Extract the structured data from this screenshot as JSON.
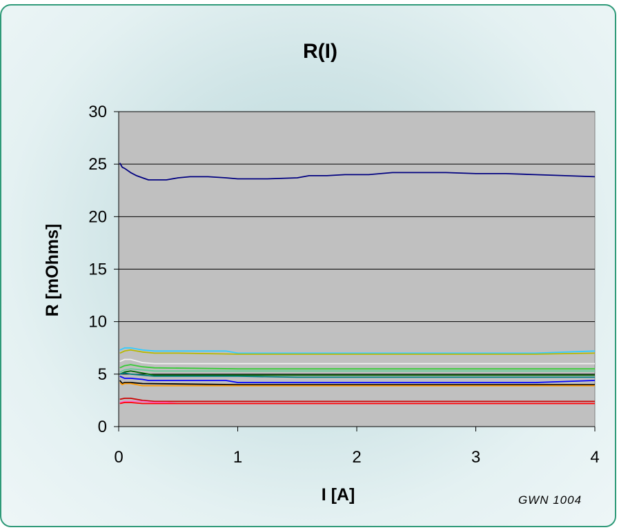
{
  "chart_data": {
    "type": "line",
    "title": "R(I)",
    "xlabel": "I [A]",
    "ylabel": "R [mOhms]",
    "annotation": "GWN 1004",
    "xlim": [
      0,
      4
    ],
    "ylim": [
      0,
      30
    ],
    "xticks": [
      "0",
      "1",
      "2",
      "3",
      "4"
    ],
    "yticks": [
      "0",
      "5",
      "10",
      "15",
      "20",
      "25",
      "30"
    ],
    "grid": "horizontal",
    "legend": "none",
    "plot_background": "#c0c0c0",
    "series": [
      {
        "color": "#000080",
        "x": [
          0.01,
          0.03,
          0.05,
          0.1,
          0.15,
          0.2,
          0.25,
          0.3,
          0.4,
          0.5,
          0.6,
          0.75,
          0.9,
          1.0,
          1.25,
          1.5,
          1.6,
          1.75,
          1.9,
          2.1,
          2.3,
          2.5,
          2.75,
          3.0,
          3.25,
          3.5,
          3.75,
          4.0
        ],
        "y": [
          25.1,
          24.7,
          24.6,
          24.2,
          23.9,
          23.7,
          23.5,
          23.5,
          23.5,
          23.7,
          23.8,
          23.8,
          23.7,
          23.6,
          23.6,
          23.7,
          23.9,
          23.9,
          24.0,
          24.0,
          24.2,
          24.2,
          24.2,
          24.1,
          24.1,
          24.0,
          23.9,
          23.8
        ]
      },
      {
        "color": "#33ccff",
        "x": [
          0.01,
          0.05,
          0.1,
          0.2,
          0.3,
          0.5,
          0.9,
          1.0,
          2.0,
          3.0,
          3.5,
          4.0
        ],
        "y": [
          7.3,
          7.5,
          7.5,
          7.3,
          7.2,
          7.2,
          7.2,
          7.0,
          7.0,
          7.0,
          7.0,
          7.2
        ]
      },
      {
        "color": "#b8b800",
        "x": [
          0.01,
          0.05,
          0.1,
          0.2,
          0.3,
          0.5,
          1.0,
          2.0,
          3.0,
          3.5,
          4.0
        ],
        "y": [
          7.0,
          7.2,
          7.3,
          7.1,
          7.0,
          7.0,
          6.9,
          6.9,
          6.9,
          6.9,
          7.0
        ]
      },
      {
        "color": "#f0f0f0",
        "x": [
          0.01,
          0.05,
          0.1,
          0.2,
          0.3,
          1.0,
          2.0,
          4.0
        ],
        "y": [
          6.2,
          6.4,
          6.4,
          6.1,
          6.0,
          6.0,
          6.0,
          6.0
        ]
      },
      {
        "color": "#33cc33",
        "x": [
          0.01,
          0.05,
          0.1,
          0.2,
          0.3,
          1.0,
          2.0,
          4.0
        ],
        "y": [
          5.6,
          5.8,
          5.9,
          5.7,
          5.6,
          5.5,
          5.5,
          5.5
        ]
      },
      {
        "color": "#66cc99",
        "x": [
          0.01,
          0.05,
          0.1,
          0.2,
          0.3,
          1.0,
          2.0,
          4.0
        ],
        "y": [
          5.2,
          5.4,
          5.5,
          5.4,
          5.3,
          5.3,
          5.3,
          5.3
        ]
      },
      {
        "color": "#006600",
        "x": [
          0.01,
          0.05,
          0.1,
          0.2,
          0.3,
          1.0,
          2.0,
          4.0
        ],
        "y": [
          5.0,
          5.2,
          5.3,
          5.1,
          4.9,
          4.9,
          4.9,
          4.9
        ]
      },
      {
        "color": "#008080",
        "x": [
          0.01,
          0.05,
          0.1,
          0.2,
          0.3,
          0.5,
          1.0,
          1.5,
          2.0,
          4.0
        ],
        "y": [
          5.0,
          5.1,
          5.0,
          4.9,
          4.8,
          4.8,
          4.8,
          4.7,
          4.7,
          4.7
        ]
      },
      {
        "color": "#0000ff",
        "x": [
          0.01,
          0.05,
          0.1,
          0.2,
          0.25,
          0.5,
          0.9,
          1.0,
          2.0,
          3.0,
          3.5,
          4.0
        ],
        "y": [
          4.8,
          4.6,
          4.6,
          4.5,
          4.4,
          4.4,
          4.4,
          4.2,
          4.2,
          4.2,
          4.2,
          4.4
        ]
      },
      {
        "color": "#000000",
        "x": [
          0.01,
          0.03,
          0.05,
          0.1,
          0.2,
          1.0,
          2.0,
          4.0
        ],
        "y": [
          4.4,
          4.1,
          4.2,
          4.2,
          4.1,
          4.0,
          4.0,
          4.0
        ]
      },
      {
        "color": "#ff9900",
        "x": [
          0.01,
          0.03,
          0.05,
          0.1,
          0.2,
          0.3,
          1.0,
          2.0,
          4.0
        ],
        "y": [
          4.2,
          4.0,
          4.1,
          4.1,
          3.9,
          3.9,
          3.9,
          3.9,
          3.9
        ]
      },
      {
        "color": "#cc0000",
        "x": [
          0.01,
          0.05,
          0.1,
          0.2,
          0.3,
          0.5,
          1.0,
          2.0,
          4.0
        ],
        "y": [
          2.6,
          2.7,
          2.7,
          2.5,
          2.4,
          2.4,
          2.4,
          2.4,
          2.4
        ]
      },
      {
        "color": "#ff66cc",
        "x": [
          0.01,
          0.05,
          0.1,
          0.2,
          0.3,
          0.4,
          0.5,
          1.0,
          4.0
        ],
        "y": [
          2.3,
          2.4,
          2.4,
          2.4,
          2.3,
          2.3,
          2.2,
          2.2,
          2.2
        ]
      },
      {
        "color": "#ff0000",
        "x": [
          0.01,
          0.05,
          0.1,
          0.2,
          0.3,
          0.5,
          1.0,
          2.0,
          4.0
        ],
        "y": [
          2.2,
          2.3,
          2.3,
          2.2,
          2.2,
          2.2,
          2.2,
          2.2,
          2.2
        ]
      }
    ]
  }
}
